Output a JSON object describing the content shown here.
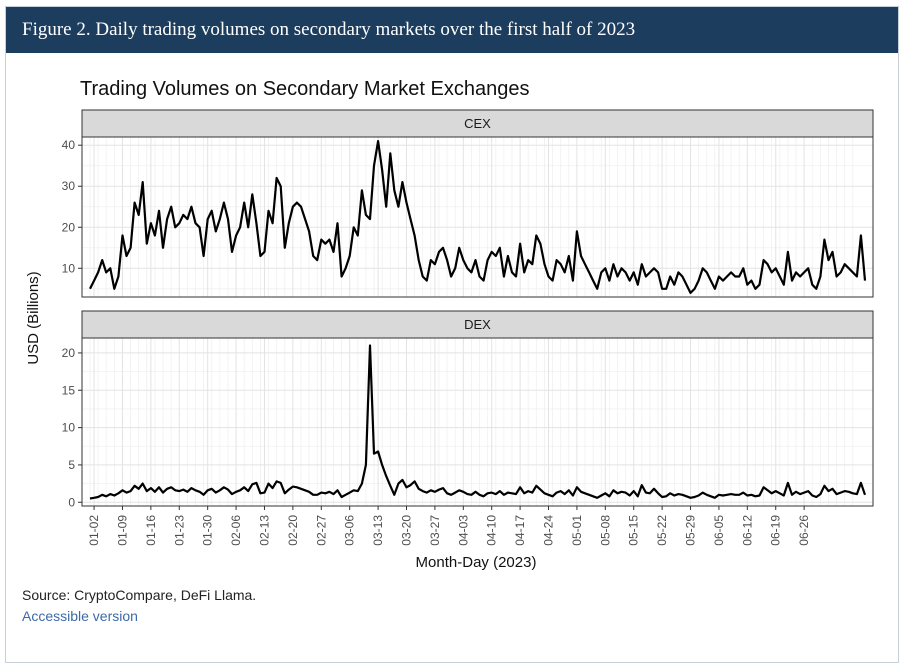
{
  "header": {
    "title": "Figure 2. Daily trading volumes on secondary markets over the first half of 2023"
  },
  "footer": {
    "source": "Source: CryptoCompare, DeFi Llama.",
    "accessible_link": "Accessible version"
  },
  "chart_data": {
    "type": "line",
    "title": "Trading Volumes on Secondary Market Exchanges",
    "xlabel": "Month-Day (2023)",
    "ylabel": "USD (Billions)",
    "grid": true,
    "x_tick_labels": [
      "01-02",
      "01-09",
      "01-16",
      "01-23",
      "01-30",
      "02-06",
      "02-13",
      "02-20",
      "02-27",
      "03-06",
      "03-13",
      "03-20",
      "03-27",
      "04-03",
      "04-10",
      "04-17",
      "04-24",
      "05-01",
      "05-08",
      "05-15",
      "05-22",
      "05-29",
      "06-05",
      "06-12",
      "06-19",
      "06-26"
    ],
    "panels": [
      {
        "name": "CEX",
        "ylim": [
          3,
          42
        ],
        "yticks": [
          10,
          20,
          30,
          40
        ],
        "values": [
          5,
          7,
          9,
          12,
          9,
          10,
          5,
          8,
          18,
          13,
          15,
          26,
          23,
          31,
          16,
          21,
          18,
          24,
          15,
          22,
          25,
          20,
          21,
          23,
          22,
          25,
          21,
          20,
          13,
          22,
          24,
          19,
          22,
          26,
          22,
          14,
          18,
          20,
          26,
          20,
          28,
          21,
          13,
          14,
          24,
          21,
          32,
          30,
          15,
          21,
          25,
          26,
          25,
          22,
          19,
          13,
          12,
          17,
          16,
          17,
          14,
          21,
          8,
          10,
          13,
          20,
          18,
          29,
          23,
          22,
          35,
          41,
          34,
          25,
          38,
          29,
          25,
          31,
          26,
          22,
          18,
          12,
          8,
          7,
          12,
          11,
          14,
          15,
          12,
          8,
          10,
          15,
          12,
          10,
          9,
          12,
          8,
          7,
          12,
          14,
          13,
          15,
          8,
          13,
          9,
          8,
          16,
          9,
          12,
          11,
          18,
          16,
          11,
          8,
          7,
          12,
          11,
          9,
          13,
          7,
          19,
          13,
          11,
          9,
          7,
          5,
          9,
          10,
          7,
          11,
          8,
          10,
          9,
          7,
          9,
          6,
          11,
          8,
          9,
          10,
          9,
          5,
          5,
          8,
          6,
          9,
          8,
          6,
          4,
          5,
          7,
          10,
          9,
          7,
          5,
          8,
          7,
          8,
          9,
          8,
          8,
          10,
          6,
          7,
          5,
          6,
          12,
          11,
          9,
          10,
          8,
          6,
          14,
          7,
          9,
          8,
          9,
          10,
          6,
          5,
          8,
          17,
          12,
          14,
          8,
          9,
          11,
          10,
          9,
          8,
          18,
          7
        ]
      },
      {
        "name": "DEX",
        "ylim": [
          -0.5,
          22
        ],
        "yticks": [
          0,
          5,
          10,
          15,
          20
        ],
        "values": [
          0.5,
          0.6,
          0.7,
          1.0,
          0.8,
          1.1,
          0.9,
          1.2,
          1.6,
          1.3,
          1.5,
          2.2,
          1.8,
          2.5,
          1.5,
          1.9,
          1.4,
          2.0,
          1.3,
          1.8,
          2.0,
          1.6,
          1.5,
          1.7,
          1.4,
          1.9,
          1.6,
          1.4,
          1.0,
          1.6,
          1.8,
          1.3,
          1.6,
          2.0,
          1.7,
          1.1,
          1.4,
          1.6,
          2.0,
          1.5,
          2.4,
          2.6,
          1.2,
          1.3,
          2.5,
          1.9,
          2.8,
          2.6,
          1.2,
          1.7,
          2.1,
          2.0,
          1.8,
          1.6,
          1.4,
          1.0,
          1.0,
          1.3,
          1.2,
          1.4,
          1.1,
          1.6,
          0.7,
          1.0,
          1.3,
          1.6,
          1.5,
          2.5,
          5.0,
          21.0,
          6.5,
          6.8,
          5.0,
          3.5,
          2.2,
          1.0,
          2.5,
          3.0,
          2.0,
          2.3,
          2.8,
          1.8,
          1.5,
          1.3,
          1.6,
          1.4,
          1.7,
          1.9,
          1.2,
          1.0,
          1.3,
          1.6,
          1.4,
          1.1,
          1.0,
          1.4,
          1.0,
          0.8,
          1.2,
          1.3,
          1.1,
          1.5,
          1.0,
          1.3,
          1.2,
          1.1,
          2.0,
          1.2,
          1.5,
          1.3,
          2.2,
          1.7,
          1.2,
          1.0,
          0.8,
          1.3,
          1.5,
          1.1,
          1.6,
          0.9,
          2.0,
          1.4,
          1.2,
          1.0,
          0.8,
          0.6,
          0.9,
          1.2,
          0.8,
          1.6,
          1.2,
          1.4,
          1.3,
          0.9,
          1.5,
          0.8,
          2.3,
          1.3,
          1.2,
          1.8,
          1.2,
          0.7,
          0.8,
          1.2,
          0.9,
          1.1,
          1.0,
          0.8,
          0.6,
          0.7,
          0.9,
          1.3,
          1.0,
          0.8,
          0.6,
          1.0,
          0.9,
          1.0,
          1.1,
          1.0,
          1.0,
          1.3,
          0.9,
          1.0,
          0.8,
          0.9,
          2.0,
          1.6,
          1.2,
          1.5,
          1.2,
          0.9,
          2.6,
          1.0,
          1.4,
          1.1,
          1.3,
          1.5,
          0.9,
          0.7,
          1.1,
          2.2,
          1.5,
          1.8,
          1.1,
          1.3,
          1.5,
          1.4,
          1.2,
          1.1,
          2.6,
          1.0
        ]
      }
    ]
  }
}
